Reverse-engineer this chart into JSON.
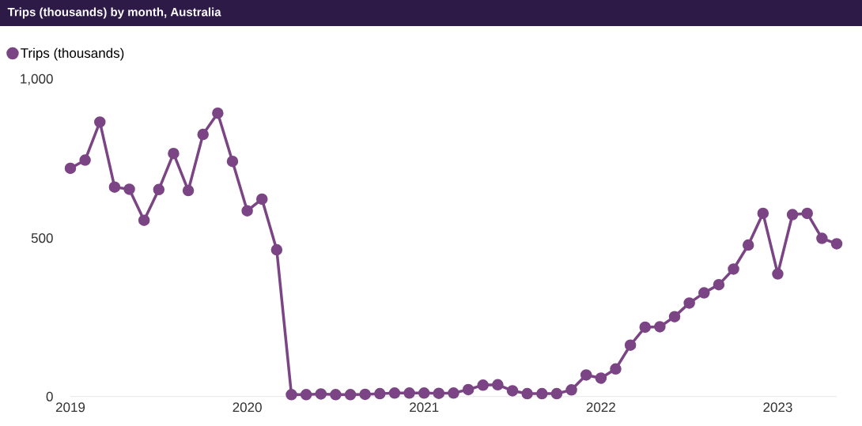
{
  "chart_data": {
    "type": "line",
    "title": "Trips (thousands) by month, Australia",
    "x": [
      "2019-01",
      "2019-02",
      "2019-03",
      "2019-04",
      "2019-05",
      "2019-06",
      "2019-07",
      "2019-08",
      "2019-09",
      "2019-10",
      "2019-11",
      "2019-12",
      "2020-01",
      "2020-02",
      "2020-03",
      "2020-04",
      "2020-05",
      "2020-06",
      "2020-07",
      "2020-08",
      "2020-09",
      "2020-10",
      "2020-11",
      "2020-12",
      "2021-01",
      "2021-02",
      "2021-03",
      "2021-04",
      "2021-05",
      "2021-06",
      "2021-07",
      "2021-08",
      "2021-09",
      "2021-10",
      "2021-11",
      "2021-12",
      "2022-01",
      "2022-02",
      "2022-03",
      "2022-04",
      "2022-05",
      "2022-06",
      "2022-07",
      "2022-08",
      "2022-09",
      "2022-10",
      "2022-11",
      "2022-12",
      "2023-01",
      "2023-02",
      "2023-03",
      "2023-04",
      "2023-05"
    ],
    "series": [
      {
        "name": "Trips (thousands)",
        "color": "#7b4585",
        "values": [
          720,
          746,
          866,
          661,
          654,
          556,
          653,
          767,
          650,
          827,
          894,
          742,
          586,
          623,
          463,
          6,
          6,
          8,
          6,
          6,
          7,
          9,
          11,
          11,
          11,
          10,
          11,
          22,
          36,
          37,
          18,
          9,
          9,
          9,
          21,
          68,
          58,
          87,
          162,
          219,
          220,
          252,
          295,
          327,
          353,
          402,
          478,
          578,
          387,
          574,
          578,
          499,
          482
        ]
      }
    ],
    "xlim": [
      "2019-01",
      "2023-05"
    ],
    "xticks": [
      "2019",
      "2020",
      "2021",
      "2022",
      "2023"
    ],
    "ylim": [
      0,
      1000
    ],
    "yticks": [
      0,
      500,
      {
        "value": 1000,
        "label": "1,000"
      }
    ],
    "grid": false,
    "legend": "top left",
    "marker": "circle",
    "line_style": "solid"
  }
}
